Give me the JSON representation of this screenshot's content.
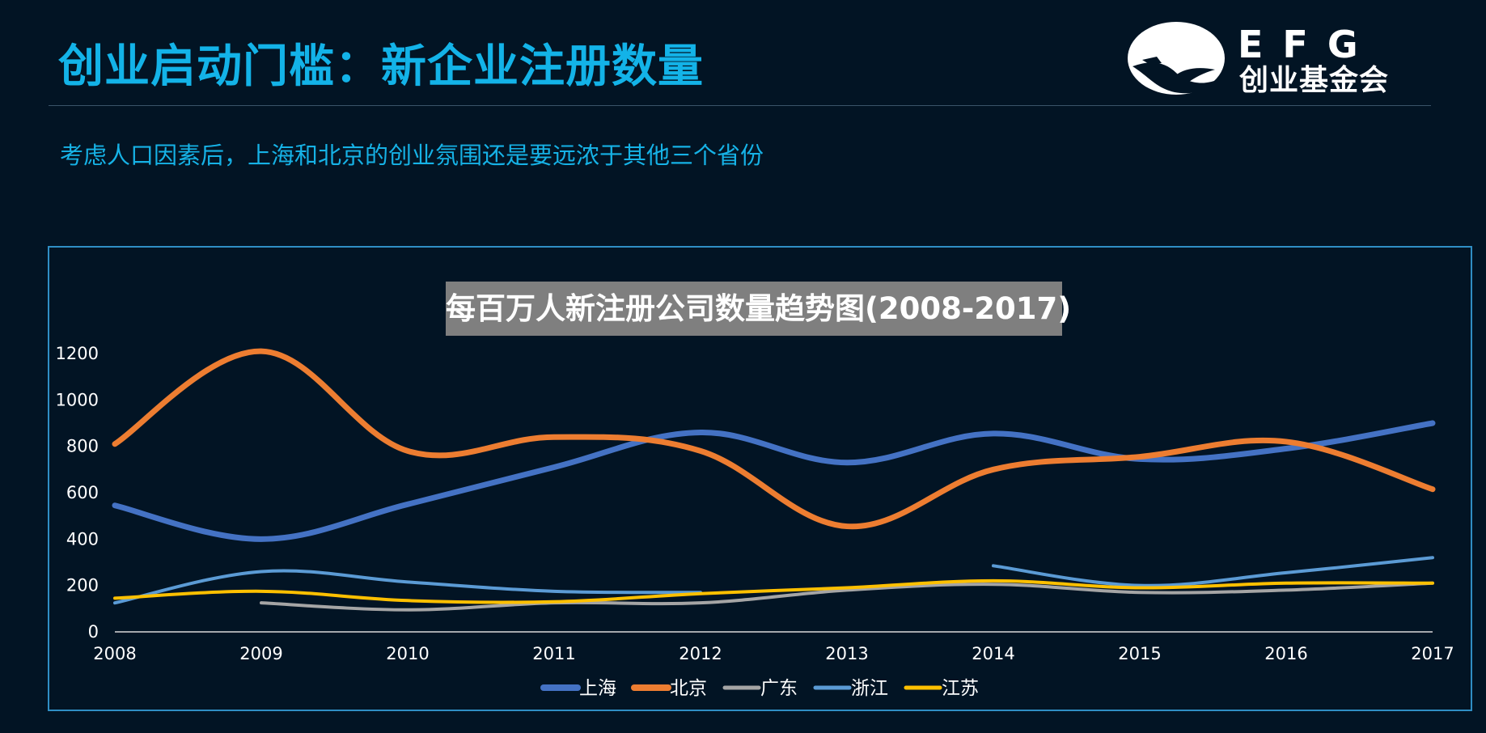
{
  "header": {
    "title": "创业启动门槛：新企业注册数量",
    "subtitle": "考虑人口因素后，上海和北京的创业氛围还是要远浓于其他三个省份"
  },
  "logo": {
    "mark": "EFG",
    "name": "创业基金会",
    "icon": "eagle-icon"
  },
  "colors": {
    "accent": "#13b3e8",
    "background": "#021424",
    "frame": "#2f8ec4"
  },
  "chart_data": {
    "type": "line",
    "title": "每百万人新注册公司数量趋势图(2008-2017)",
    "xlabel": "",
    "ylabel": "",
    "x": [
      "2008",
      "2009",
      "2010",
      "2011",
      "2012",
      "2013",
      "2014",
      "2015",
      "2016",
      "2017"
    ],
    "ylim": [
      0,
      1200
    ],
    "yticks": [
      0,
      200,
      400,
      600,
      800,
      1000,
      1200
    ],
    "grid": false,
    "smooth": true,
    "legend_position": "bottom",
    "series": [
      {
        "name": "上海",
        "color": "#4472c4",
        "values": [
          545,
          400,
          550,
          710,
          860,
          730,
          855,
          745,
          790,
          900
        ]
      },
      {
        "name": "北京",
        "color": "#ed7d31",
        "values": [
          810,
          1210,
          780,
          840,
          780,
          455,
          700,
          755,
          820,
          615
        ]
      },
      {
        "name": "广东",
        "color": "#a5a5a5",
        "values": [
          null,
          125,
          95,
          125,
          125,
          180,
          205,
          170,
          180,
          210
        ]
      },
      {
        "name": "浙江",
        "color": "#5b9bd5",
        "values": [
          125,
          260,
          215,
          175,
          170,
          null,
          285,
          200,
          255,
          320
        ]
      },
      {
        "name": "江苏",
        "color": "#ffc000",
        "values": [
          145,
          175,
          135,
          130,
          165,
          190,
          220,
          190,
          210,
          210
        ]
      }
    ]
  }
}
